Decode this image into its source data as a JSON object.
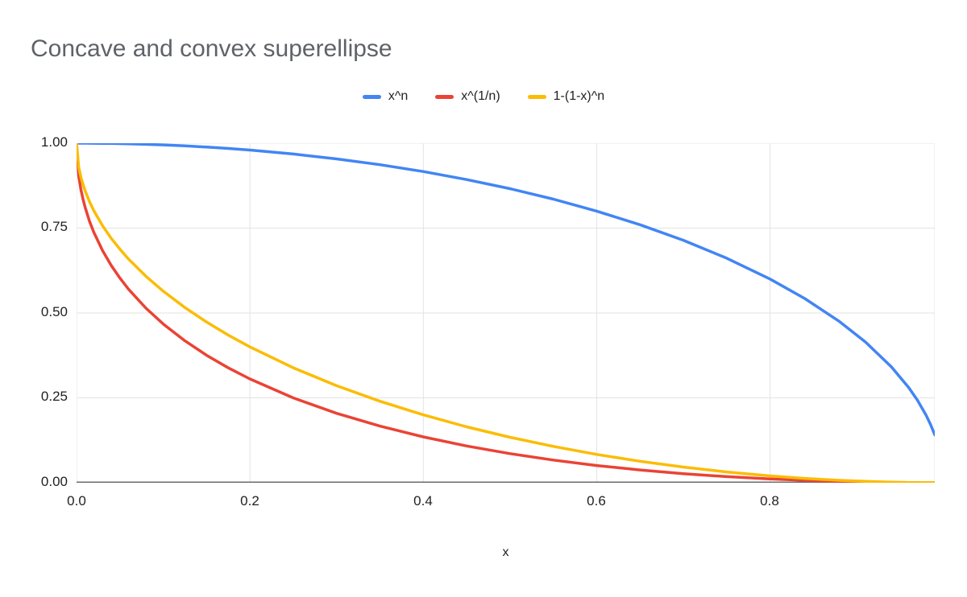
{
  "chart_data": {
    "type": "line",
    "title": "Concave and convex superellipse",
    "xlabel": "x",
    "ylabel": "",
    "legend_position": "top",
    "grid": true,
    "background": "#ffffff",
    "title_color": "#5f6368",
    "grid_color": "#e3e3e3",
    "axis_line_color": "#6b6b6b",
    "tick_label_color": "#202124",
    "x_range": [
      0,
      0.99
    ],
    "y_range": [
      0,
      1
    ],
    "x_grid": [
      0,
      0.2,
      0.4,
      0.6,
      0.8,
      0.99
    ],
    "y_grid": [
      0,
      0.25,
      0.5,
      0.75,
      1
    ],
    "x_tick_labels": [
      "0.0",
      "0.2",
      "0.4",
      "0.6",
      "0.8"
    ],
    "y_tick_labels": [
      "1.00",
      "0.75",
      "0.50",
      "0.25",
      "0.00"
    ],
    "series": [
      {
        "name": "x^n",
        "color": "#4285f4",
        "points": [
          [
            0,
            1
          ],
          [
            0.01,
            1
          ],
          [
            0.02,
            0.9998
          ],
          [
            0.04,
            0.9992
          ],
          [
            0.06,
            0.9982
          ],
          [
            0.08,
            0.9968
          ],
          [
            0.1,
            0.995
          ],
          [
            0.125,
            0.9922
          ],
          [
            0.15,
            0.9887
          ],
          [
            0.175,
            0.9846
          ],
          [
            0.2,
            0.9798
          ],
          [
            0.25,
            0.9682
          ],
          [
            0.3,
            0.9539
          ],
          [
            0.35,
            0.9367
          ],
          [
            0.4,
            0.9165
          ],
          [
            0.45,
            0.893
          ],
          [
            0.5,
            0.866
          ],
          [
            0.55,
            0.8352
          ],
          [
            0.6,
            0.8
          ],
          [
            0.65,
            0.7599
          ],
          [
            0.7,
            0.7141
          ],
          [
            0.75,
            0.6614
          ],
          [
            0.8,
            0.6
          ],
          [
            0.84,
            0.5426
          ],
          [
            0.88,
            0.475
          ],
          [
            0.91,
            0.4146
          ],
          [
            0.94,
            0.3412
          ],
          [
            0.96,
            0.28
          ],
          [
            0.97,
            0.2431
          ],
          [
            0.98,
            0.199
          ],
          [
            0.985,
            0.1726
          ],
          [
            0.99,
            0.1411
          ]
        ]
      },
      {
        "name": "x^(1/n)",
        "color": "#ea4335",
        "points": [
          [
            0,
            1
          ],
          [
            0.0025,
            0.9025
          ],
          [
            0.005,
            0.8636
          ],
          [
            0.0075,
            0.8343
          ],
          [
            0.01,
            0.81
          ],
          [
            0.015,
            0.77
          ],
          [
            0.02,
            0.7372
          ],
          [
            0.03,
            0.6836
          ],
          [
            0.04,
            0.64
          ],
          [
            0.05,
            0.6028
          ],
          [
            0.06,
            0.5701
          ],
          [
            0.08,
            0.5143
          ],
          [
            0.1,
            0.4675
          ],
          [
            0.125,
            0.4179
          ],
          [
            0.15,
            0.3754
          ],
          [
            0.175,
            0.3383
          ],
          [
            0.2,
            0.3056
          ],
          [
            0.25,
            0.25
          ],
          [
            0.3,
            0.2046
          ],
          [
            0.35,
            0.1668
          ],
          [
            0.4,
            0.1351
          ],
          [
            0.45,
            0.1084
          ],
          [
            0.5,
            0.0858
          ],
          [
            0.55,
            0.0668
          ],
          [
            0.6,
            0.0508
          ],
          [
            0.65,
            0.0376
          ],
          [
            0.7,
            0.0267
          ],
          [
            0.75,
            0.018
          ],
          [
            0.8,
            0.0112
          ],
          [
            0.84,
            0.007
          ],
          [
            0.88,
            0.0038
          ],
          [
            0.91,
            0.0021
          ],
          [
            0.94,
            0.0009
          ],
          [
            0.96,
            0.0004
          ],
          [
            0.98,
            0.0001
          ],
          [
            0.99,
            0
          ]
        ]
      },
      {
        "name": "1-(1-x)^n",
        "color": "#fbbc04",
        "points": [
          [
            0,
            1
          ],
          [
            0.0025,
            0.9293
          ],
          [
            0.005,
            0.9001
          ],
          [
            0.0075,
            0.8778
          ],
          [
            0.01,
            0.8589
          ],
          [
            0.015,
            0.8275
          ],
          [
            0.02,
            0.801
          ],
          [
            0.03,
            0.7569
          ],
          [
            0.04,
            0.72
          ],
          [
            0.05,
            0.6878
          ],
          [
            0.06,
            0.6588
          ],
          [
            0.08,
            0.6081
          ],
          [
            0.1,
            0.5641
          ],
          [
            0.125,
            0.5159
          ],
          [
            0.15,
            0.4732
          ],
          [
            0.175,
            0.4349
          ],
          [
            0.2,
            0.4
          ],
          [
            0.25,
            0.3386
          ],
          [
            0.3,
            0.2859
          ],
          [
            0.35,
            0.2401
          ],
          [
            0.4,
            0.2
          ],
          [
            0.45,
            0.1648
          ],
          [
            0.5,
            0.134
          ],
          [
            0.55,
            0.107
          ],
          [
            0.6,
            0.0835
          ],
          [
            0.65,
            0.0633
          ],
          [
            0.7,
            0.0461
          ],
          [
            0.75,
            0.0318
          ],
          [
            0.8,
            0.0202
          ],
          [
            0.84,
            0.0129
          ],
          [
            0.88,
            0.0072
          ],
          [
            0.91,
            0.0041
          ],
          [
            0.94,
            0.0018
          ],
          [
            0.96,
            0.0008
          ],
          [
            0.98,
            0.0002
          ],
          [
            0.99,
            0.0001
          ]
        ]
      }
    ]
  }
}
